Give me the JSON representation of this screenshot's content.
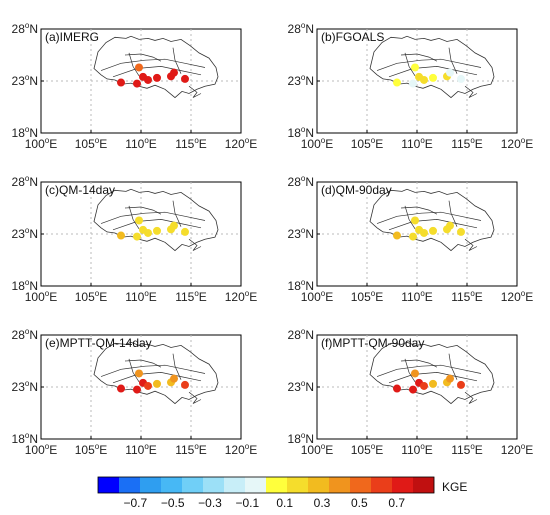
{
  "chart_data": {
    "type": "scatter",
    "xlim": [
      100,
      120
    ],
    "ylim": [
      18,
      28
    ],
    "x_ticks": [
      {
        "value": 100,
        "deg": "100",
        "hemi": "E"
      },
      {
        "value": 105,
        "deg": "105",
        "hemi": "E"
      },
      {
        "value": 110,
        "deg": "110",
        "hemi": "E"
      },
      {
        "value": 115,
        "deg": "115",
        "hemi": "E"
      },
      {
        "value": 120,
        "deg": "120",
        "hemi": "E"
      }
    ],
    "y_ticks": [
      {
        "value": 18,
        "deg": "18",
        "hemi": "N"
      },
      {
        "value": 23,
        "deg": "23",
        "hemi": "N"
      },
      {
        "value": 28,
        "deg": "28",
        "hemi": "N"
      }
    ],
    "degree_symbol": "o",
    "grid": true,
    "panels": [
      {
        "title": "(a)IMERG",
        "values": [
          0.7,
          0.55,
          0.7,
          0.7,
          0.7,
          0.7,
          0.7,
          0.7,
          0.7
        ]
      },
      {
        "title": "(b)FGOALS",
        "values": [
          0.1,
          0.1,
          -0.05,
          0.15,
          0.15,
          0.1,
          0.15,
          -0.05,
          -0.1
        ]
      },
      {
        "title": "(c)QM-14day",
        "values": [
          0.25,
          0.15,
          0.2,
          0.2,
          0.15,
          0.2,
          0.2,
          0.15,
          0.2
        ]
      },
      {
        "title": "(d)QM-90day",
        "values": [
          0.25,
          0.15,
          0.2,
          0.2,
          0.15,
          0.2,
          0.2,
          0.15,
          0.2
        ]
      },
      {
        "title": "(e)MPTT-QM-14day",
        "values": [
          0.7,
          0.35,
          0.7,
          0.7,
          0.6,
          0.3,
          0.3,
          0.35,
          0.6
        ]
      },
      {
        "title": "(f)MPTT-QM-90day",
        "values": [
          0.7,
          0.35,
          0.7,
          0.7,
          0.6,
          0.3,
          0.3,
          0.35,
          0.6
        ]
      }
    ],
    "stations": [
      {
        "lon": 108.0,
        "lat": 22.85
      },
      {
        "lon": 109.8,
        "lat": 24.3
      },
      {
        "lon": 109.6,
        "lat": 22.75
      },
      {
        "lon": 110.2,
        "lat": 23.4
      },
      {
        "lon": 110.7,
        "lat": 23.1
      },
      {
        "lon": 111.6,
        "lat": 23.3
      },
      {
        "lon": 113.0,
        "lat": 23.45
      },
      {
        "lon": 113.3,
        "lat": 23.8
      },
      {
        "lon": 114.4,
        "lat": 23.2
      }
    ],
    "colorbar": {
      "label": "KGE",
      "range": [
        -0.9,
        0.9
      ],
      "colors": [
        "#0000ff",
        "#1a6ff5",
        "#2f9ef0",
        "#47b8f5",
        "#70cff7",
        "#9ce0f7",
        "#c8eef8",
        "#e6f7f8",
        "#ffff3c",
        "#f5dd2c",
        "#f2bb1f",
        "#f0941e",
        "#f0681c",
        "#ea3e1a",
        "#e01a17",
        "#c01010"
      ],
      "tick_labels": [
        {
          "value": -0.7,
          "text": "−0.7"
        },
        {
          "value": -0.5,
          "text": "−0.5"
        },
        {
          "value": -0.3,
          "text": "−0.3"
        },
        {
          "value": -0.1,
          "text": "−0.1"
        },
        {
          "value": 0.1,
          "text": "0.1"
        },
        {
          "value": 0.3,
          "text": "0.3"
        },
        {
          "value": 0.5,
          "text": "0.5"
        },
        {
          "value": 0.7,
          "text": "0.7"
        }
      ]
    }
  }
}
